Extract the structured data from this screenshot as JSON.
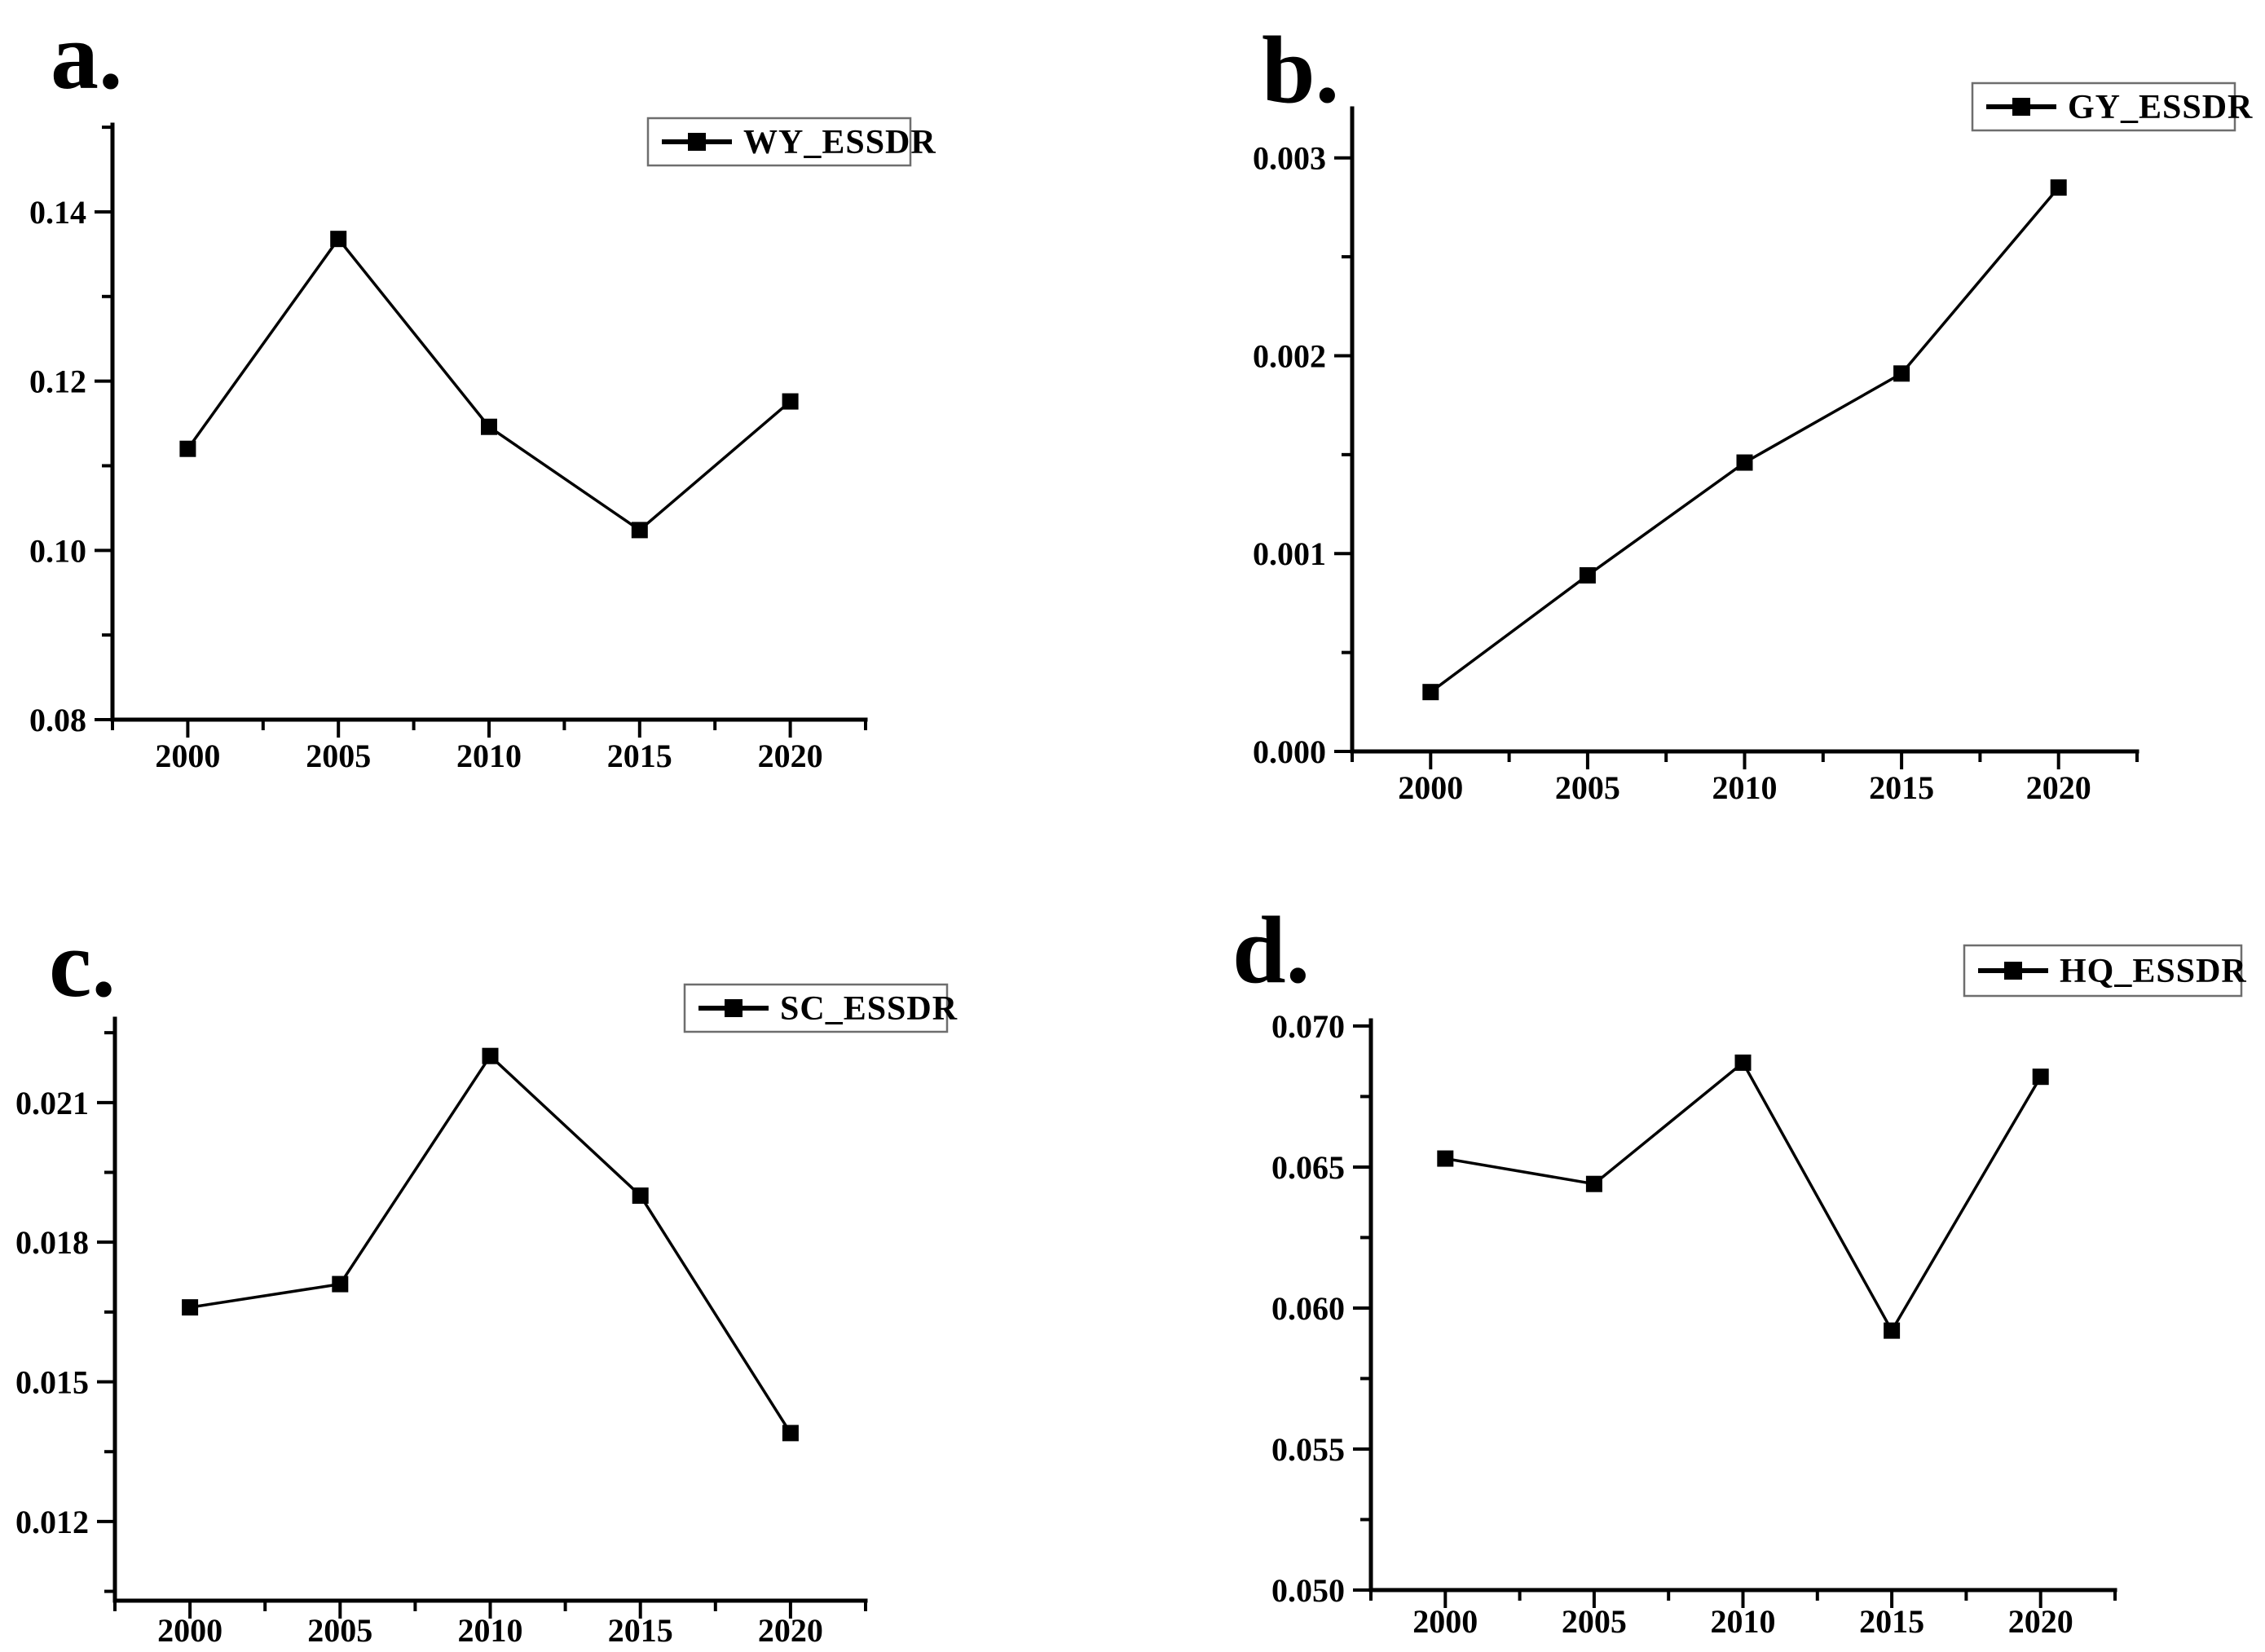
{
  "figure": {
    "background": "#ffffff",
    "line_color": "#000000",
    "legend_border_color": "#6e6e6e",
    "marker_shape": "filled-square",
    "x_axis_years_shared": [
      2000,
      2005,
      2010,
      2015,
      2020
    ]
  },
  "chart_data": [
    {
      "id": "a",
      "type": "line",
      "panel_label": "a.",
      "legend": "WY_ESSDR",
      "legend_position": "top-right",
      "grid": false,
      "x": [
        2000,
        2005,
        2010,
        2015,
        2020
      ],
      "series": [
        {
          "name": "WY_ESSDR",
          "values": [
            0.112,
            0.1368,
            0.1146,
            0.1024,
            0.1176
          ]
        }
      ],
      "xlim": [
        1997.5,
        2022.5
      ],
      "ylim": [
        0.08,
        0.1503
      ],
      "x_tick_labels": [
        "2000",
        "2005",
        "2010",
        "2015",
        "2020"
      ],
      "x_minor_ticks": [
        1997.5,
        2002.5,
        2007.5,
        2012.5,
        2017.5,
        2022.5
      ],
      "y_major_ticks": [
        {
          "value": 0.08,
          "label": "0.08"
        },
        {
          "value": 0.1,
          "label": "0.10"
        },
        {
          "value": 0.12,
          "label": "0.12"
        },
        {
          "value": 0.14,
          "label": "0.14"
        }
      ],
      "y_minor_ticks": [
        0.09,
        0.11,
        0.13,
        0.15
      ]
    },
    {
      "id": "b",
      "type": "line",
      "panel_label": "b.",
      "legend": "GY_ESSDR",
      "legend_position": "top-right",
      "grid": false,
      "x": [
        2000,
        2005,
        2010,
        2015,
        2020
      ],
      "series": [
        {
          "name": "GY_ESSDR",
          "values": [
            0.0003,
            0.00089,
            0.00146,
            0.00191,
            0.00285
          ]
        }
      ],
      "xlim": [
        1997.5,
        2022.5
      ],
      "ylim": [
        0.0,
        0.00325
      ],
      "x_tick_labels": [
        "2000",
        "2005",
        "2010",
        "2015",
        "2020"
      ],
      "x_minor_ticks": [
        1997.5,
        2002.5,
        2007.5,
        2012.5,
        2017.5,
        2022.5
      ],
      "y_major_ticks": [
        {
          "value": 0.0,
          "label": "0.000"
        },
        {
          "value": 0.001,
          "label": "0.001"
        },
        {
          "value": 0.002,
          "label": "0.002"
        },
        {
          "value": 0.003,
          "label": "0.003"
        }
      ],
      "y_minor_ticks": [
        0.0005,
        0.0015,
        0.0025
      ]
    },
    {
      "id": "c",
      "type": "line",
      "panel_label": "c.",
      "legend": "SC_ESSDR",
      "legend_position": "top-right",
      "grid": false,
      "x": [
        2000,
        2005,
        2010,
        2015,
        2020
      ],
      "series": [
        {
          "name": "SC_ESSDR",
          "values": [
            0.0166,
            0.0171,
            0.022,
            0.019,
            0.0139
          ]
        }
      ],
      "xlim": [
        1997.5,
        2022.5
      ],
      "ylim": [
        0.0103,
        0.0228
      ],
      "x_tick_labels": [
        "2000",
        "2005",
        "2010",
        "2015",
        "2020"
      ],
      "x_minor_ticks": [
        1997.5,
        2002.5,
        2007.5,
        2012.5,
        2017.5,
        2022.5
      ],
      "y_major_ticks": [
        {
          "value": 0.012,
          "label": "0.012"
        },
        {
          "value": 0.015,
          "label": "0.015"
        },
        {
          "value": 0.018,
          "label": "0.018"
        },
        {
          "value": 0.021,
          "label": "0.021"
        }
      ],
      "y_minor_ticks": [
        0.0105,
        0.0135,
        0.0165,
        0.0195,
        0.0225
      ]
    },
    {
      "id": "d",
      "type": "line",
      "panel_label": "d.",
      "legend": "HQ_ESSDR",
      "legend_position": "top-right",
      "grid": false,
      "x": [
        2000,
        2005,
        2010,
        2015,
        2020
      ],
      "series": [
        {
          "name": "HQ_ESSDR",
          "values": [
            0.0653,
            0.0644,
            0.0687,
            0.0592,
            0.0682
          ]
        }
      ],
      "xlim": [
        1997.5,
        2022.5
      ],
      "ylim": [
        0.05,
        0.0702
      ],
      "x_tick_labels": [
        "2000",
        "2005",
        "2010",
        "2015",
        "2020"
      ],
      "x_minor_ticks": [
        1997.5,
        2002.5,
        2007.5,
        2012.5,
        2017.5,
        2022.5
      ],
      "y_major_ticks": [
        {
          "value": 0.05,
          "label": "0.050"
        },
        {
          "value": 0.055,
          "label": "0.055"
        },
        {
          "value": 0.06,
          "label": "0.060"
        },
        {
          "value": 0.065,
          "label": "0.065"
        },
        {
          "value": 0.07,
          "label": "0.070"
        }
      ],
      "y_minor_ticks": [
        0.0525,
        0.0575,
        0.0625,
        0.0675
      ]
    }
  ]
}
